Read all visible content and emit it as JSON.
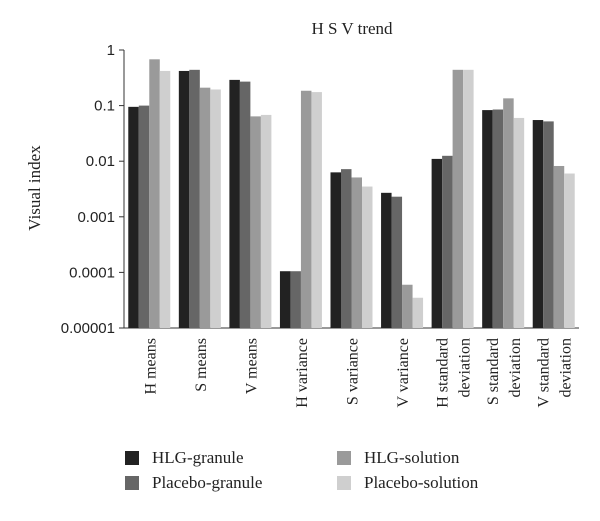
{
  "chart_data": {
    "type": "bar",
    "title": "H S V trend",
    "ylabel": "Visual index",
    "xlabel": "",
    "yscale": "log",
    "ylim": [
      1e-05,
      1
    ],
    "yticks": [
      "1",
      "0.1",
      "0.01",
      "0.001",
      "0.0001",
      "0.00001"
    ],
    "categories": [
      [
        "H means"
      ],
      [
        "S means"
      ],
      [
        "V means"
      ],
      [
        "H variance"
      ],
      [
        "S variance"
      ],
      [
        "V variance"
      ],
      [
        "H standard",
        "deviation"
      ],
      [
        "S standard",
        "deviation"
      ],
      [
        "V standard",
        "deviation"
      ]
    ],
    "series": [
      {
        "name": "HLG-granule",
        "color": "#222222",
        "values": [
          0.095,
          0.42,
          0.29,
          0.000105,
          0.0063,
          0.0027,
          0.011,
          0.083,
          0.055
        ]
      },
      {
        "name": "Placebo-granule",
        "color": "#666666",
        "values": [
          0.1,
          0.44,
          0.27,
          0.000105,
          0.0072,
          0.0023,
          0.0125,
          0.085,
          0.052
        ]
      },
      {
        "name": "HLG-solution",
        "color": "#9a9a9a",
        "values": [
          0.68,
          0.21,
          0.064,
          0.185,
          0.0051,
          6e-05,
          0.44,
          0.135,
          0.0082
        ]
      },
      {
        "name": "Placebo-solution",
        "color": "#cfcfcf",
        "values": [
          0.42,
          0.195,
          0.068,
          0.175,
          0.0035,
          3.5e-05,
          0.44,
          0.06,
          0.006
        ]
      }
    ],
    "legend_position": "bottom",
    "grid": false
  }
}
